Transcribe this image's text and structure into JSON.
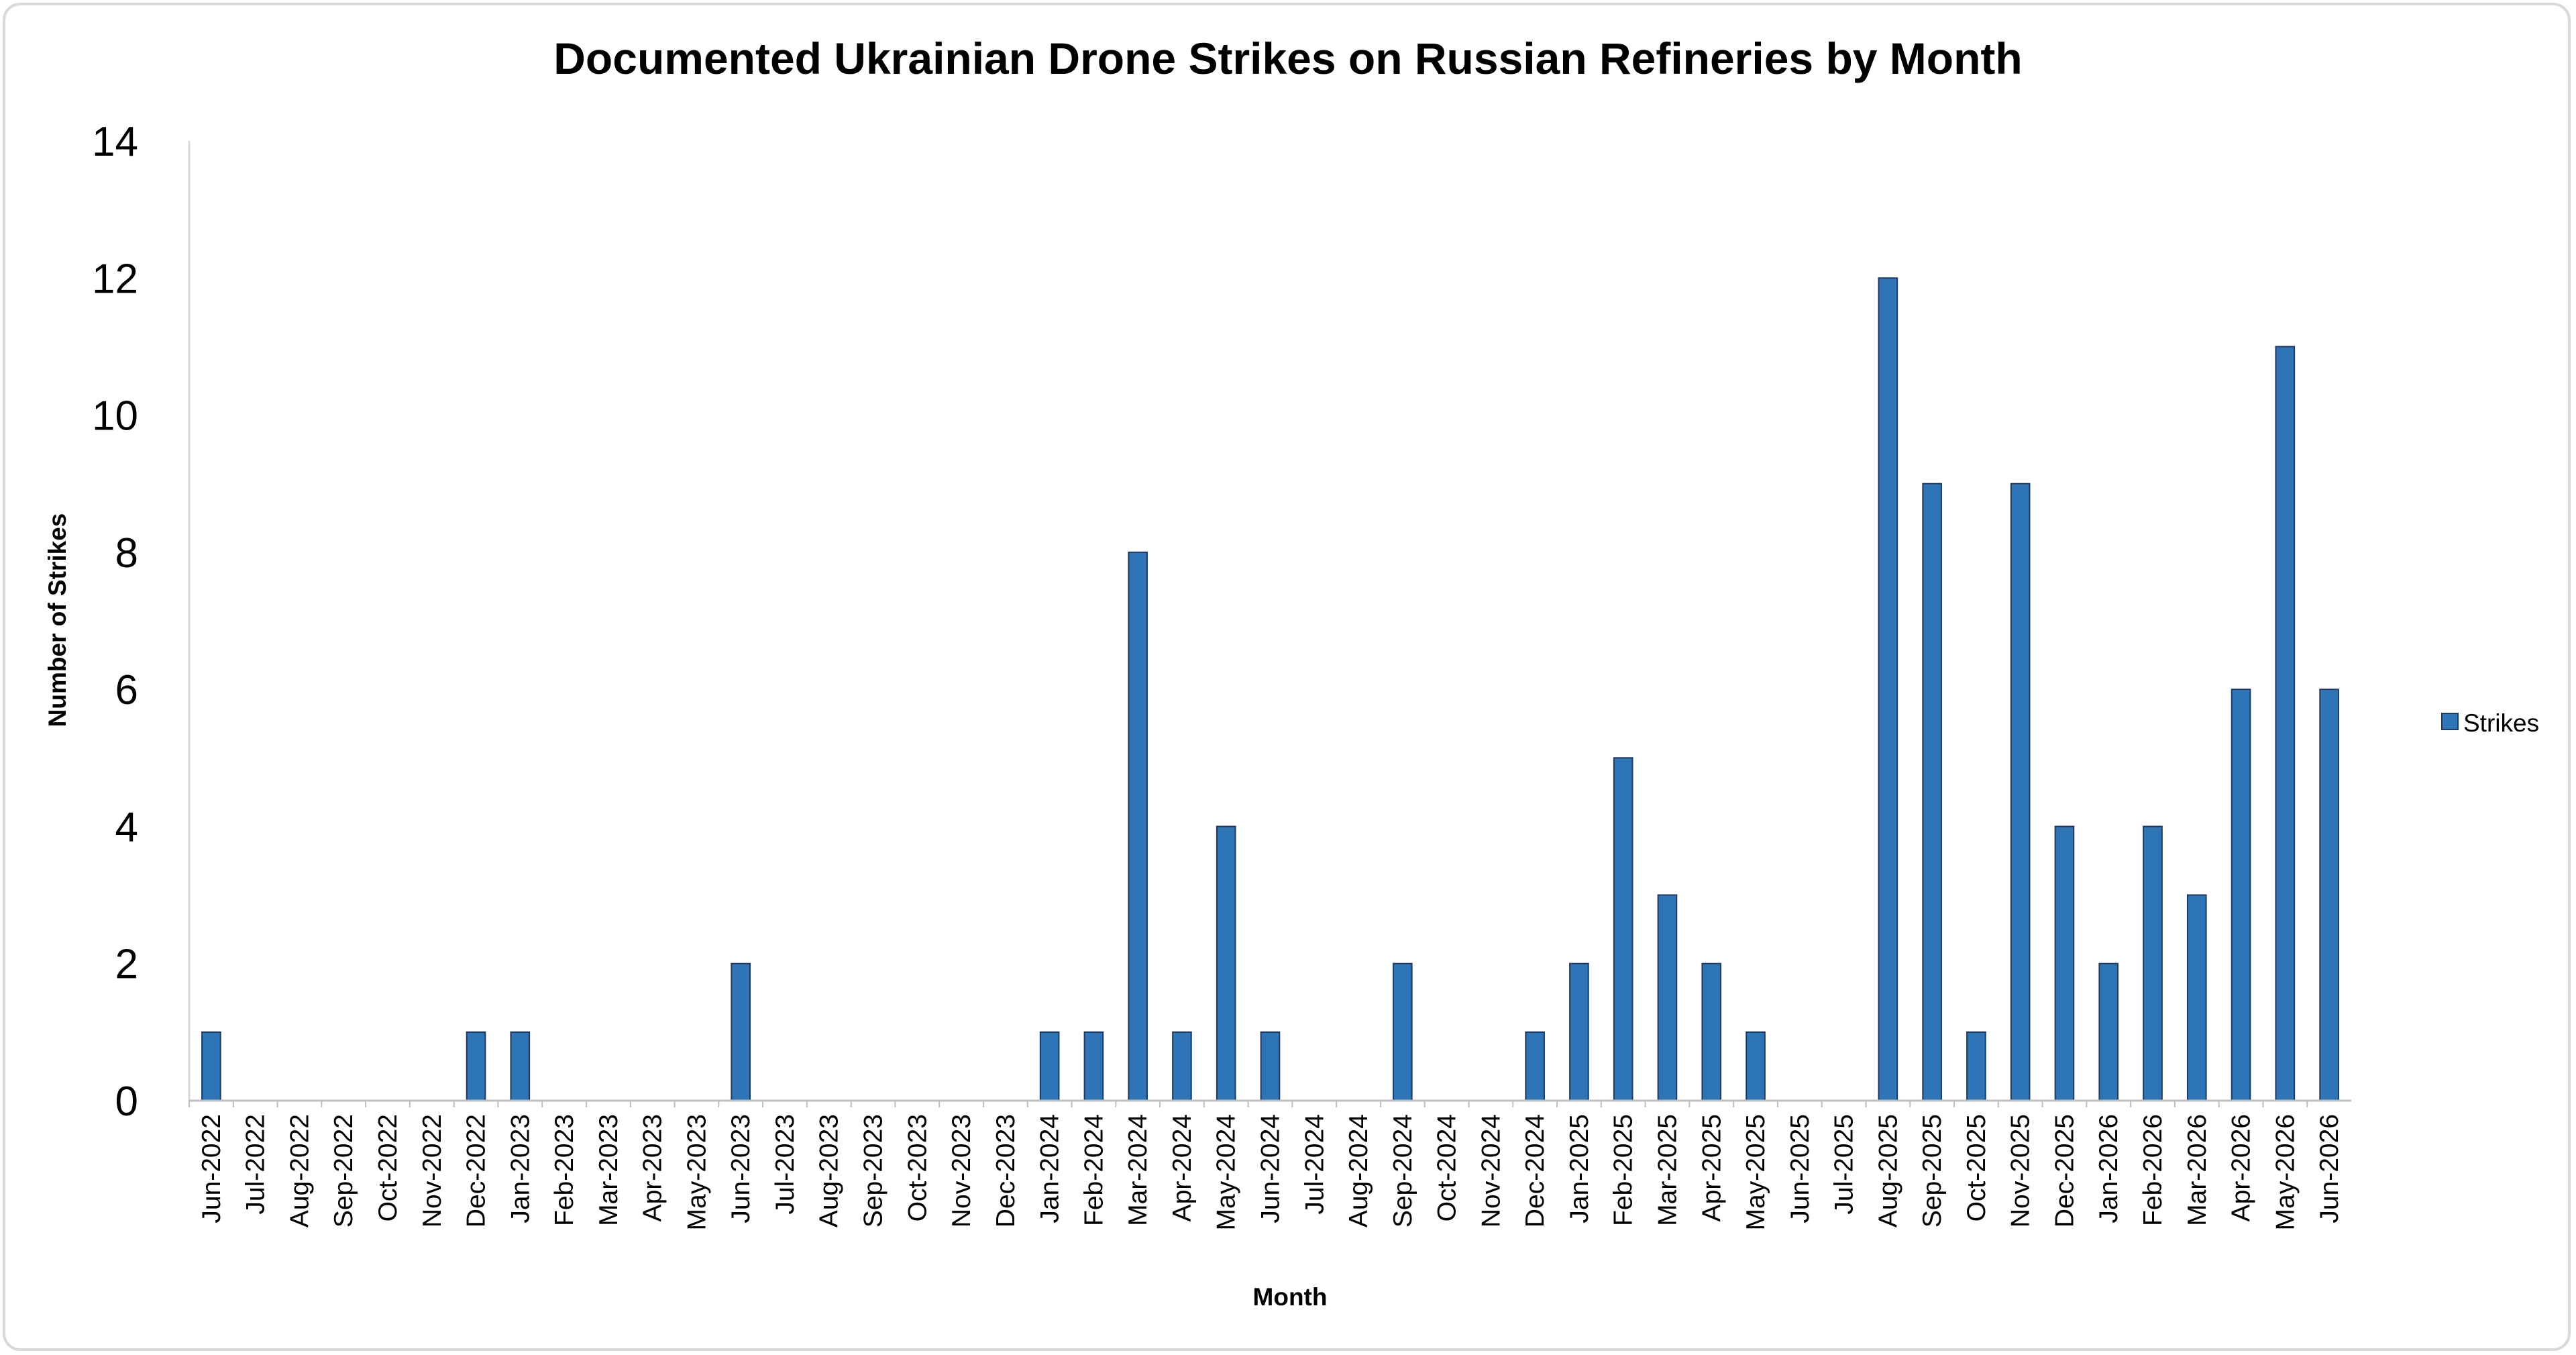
{
  "chart_data": {
    "type": "bar",
    "title": "Documented Ukrainian Drone Strikes on Russian Refineries by Month",
    "xlabel": "Month",
    "ylabel": "Number of Strikes",
    "ylim": [
      0,
      14
    ],
    "yticks": [
      0,
      2,
      4,
      6,
      8,
      10,
      12,
      14
    ],
    "grid": false,
    "legend_position": "right",
    "categories": [
      "Jun-2022",
      "Jul-2022",
      "Aug-2022",
      "Sep-2022",
      "Oct-2022",
      "Nov-2022",
      "Dec-2022",
      "Jan-2023",
      "Feb-2023",
      "Mar-2023",
      "Apr-2023",
      "May-2023",
      "Jun-2023",
      "Jul-2023",
      "Aug-2023",
      "Sep-2023",
      "Oct-2023",
      "Nov-2023",
      "Dec-2023",
      "Jan-2024",
      "Feb-2024",
      "Mar-2024",
      "Apr-2024",
      "May-2024",
      "Jun-2024",
      "Jul-2024",
      "Aug-2024",
      "Sep-2024",
      "Oct-2024",
      "Nov-2024",
      "Dec-2024",
      "Jan-2025",
      "Feb-2025",
      "Mar-2025",
      "Apr-2025",
      "May-2025",
      "Jun-2025",
      "Jul-2025",
      "Aug-2025",
      "Sep-2025",
      "Oct-2025",
      "Nov-2025",
      "Dec-2025",
      "Jan-2026",
      "Feb-2026",
      "Mar-2026",
      "Apr-2026",
      "May-2026",
      "Jun-2026"
    ],
    "series": [
      {
        "name": "Strikes",
        "color": "#2e75b6",
        "values": [
          1,
          0,
          0,
          0,
          0,
          0,
          1,
          1,
          0,
          0,
          0,
          0,
          2,
          0,
          0,
          0,
          0,
          0,
          0,
          1,
          1,
          8,
          1,
          4,
          1,
          0,
          0,
          2,
          0,
          0,
          1,
          2,
          5,
          3,
          2,
          1,
          0,
          0,
          12,
          9,
          1,
          9,
          4,
          2,
          4,
          3,
          6,
          11,
          6
        ]
      }
    ]
  }
}
